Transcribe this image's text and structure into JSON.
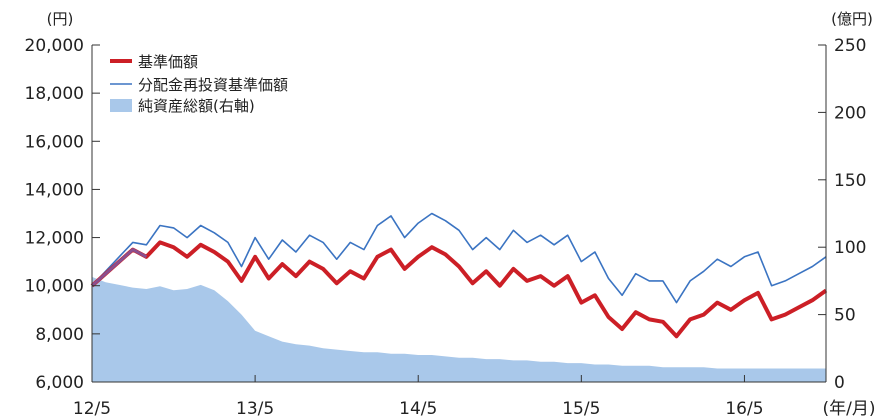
{
  "chart_data": {
    "type": "line",
    "left_unit": "(円)",
    "right_unit": "(億円)",
    "x_unit": "(年/月)",
    "x_tick_labels": [
      "12/5",
      "13/5",
      "14/5",
      "15/5",
      "16/5"
    ],
    "x_tick_positions": [
      0,
      12,
      24,
      36,
      48
    ],
    "xlim": [
      0,
      54
    ],
    "y_left": {
      "ylim": [
        6000,
        20000
      ],
      "ticks": [
        "6,000",
        "8,000",
        "10,000",
        "12,000",
        "14,000",
        "16,000",
        "18,000",
        "20,000"
      ],
      "tick_values": [
        6000,
        8000,
        10000,
        12000,
        14000,
        16000,
        18000,
        20000
      ]
    },
    "y_right": {
      "ylim": [
        0,
        250
      ],
      "ticks": [
        "0",
        "50",
        "100",
        "150",
        "200",
        "250"
      ],
      "tick_values": [
        0,
        50,
        100,
        150,
        200,
        250
      ]
    },
    "legend": [
      "基準価額",
      "分配金再投資基準価額",
      "純資産総額(右軸)"
    ],
    "legend_placement": "top-left",
    "colors": {
      "nav": "#cc1f26",
      "reinvested": "#3b74c2",
      "assets": "#a9c8ea",
      "overlap": "#8a4f8f"
    },
    "x_months": [
      0,
      1,
      2,
      3,
      4,
      5,
      6,
      7,
      8,
      9,
      10,
      11,
      12,
      13,
      14,
      15,
      16,
      17,
      18,
      19,
      20,
      21,
      22,
      23,
      24,
      25,
      26,
      27,
      28,
      29,
      30,
      31,
      32,
      33,
      34,
      35,
      36,
      37,
      38,
      39,
      40,
      41,
      42,
      43,
      44,
      45,
      46,
      47,
      48,
      49,
      50,
      51,
      52,
      53,
      54
    ],
    "series": [
      {
        "name": "基準価額",
        "axis": "left",
        "values": [
          10000,
          10500,
          11000,
          11500,
          11200,
          11800,
          11600,
          11200,
          11700,
          11400,
          11000,
          10200,
          11200,
          10300,
          10900,
          10400,
          11000,
          10700,
          10100,
          10600,
          10300,
          11200,
          11500,
          10700,
          11200,
          11600,
          11300,
          10800,
          10100,
          10600,
          10000,
          10700,
          10200,
          10400,
          10000,
          10400,
          9300,
          9600,
          8700,
          8200,
          8900,
          8600,
          8500,
          7900,
          8600,
          8800,
          9300,
          9000,
          9400,
          9700,
          8600,
          8800,
          9100,
          9400,
          9800
        ]
      },
      {
        "name": "分配金再投資基準価額",
        "axis": "left",
        "values": [
          10000,
          10600,
          11200,
          11800,
          11700,
          12500,
          12400,
          12000,
          12500,
          12200,
          11800,
          10800,
          12000,
          11100,
          11900,
          11400,
          12100,
          11800,
          11100,
          11800,
          11500,
          12500,
          12900,
          12000,
          12600,
          13000,
          12700,
          12300,
          11500,
          12000,
          11500,
          12300,
          11800,
          12100,
          11700,
          12100,
          11000,
          11400,
          10300,
          9600,
          10500,
          10200,
          10200,
          9300,
          10200,
          10600,
          11100,
          10800,
          11200,
          11400,
          10000,
          10200,
          10500,
          10800,
          11200
        ]
      },
      {
        "name": "純資産総額(右軸)",
        "axis": "right",
        "values": [
          78,
          74,
          72,
          70,
          69,
          71,
          68,
          69,
          72,
          68,
          60,
          50,
          38,
          34,
          30,
          28,
          27,
          25,
          24,
          23,
          22,
          22,
          21,
          21,
          20,
          20,
          19,
          18,
          18,
          17,
          17,
          16,
          16,
          15,
          15,
          14,
          14,
          13,
          13,
          12,
          12,
          12,
          11,
          11,
          11,
          11,
          10,
          10,
          10,
          10,
          10,
          10,
          10,
          10,
          10
        ]
      }
    ]
  }
}
